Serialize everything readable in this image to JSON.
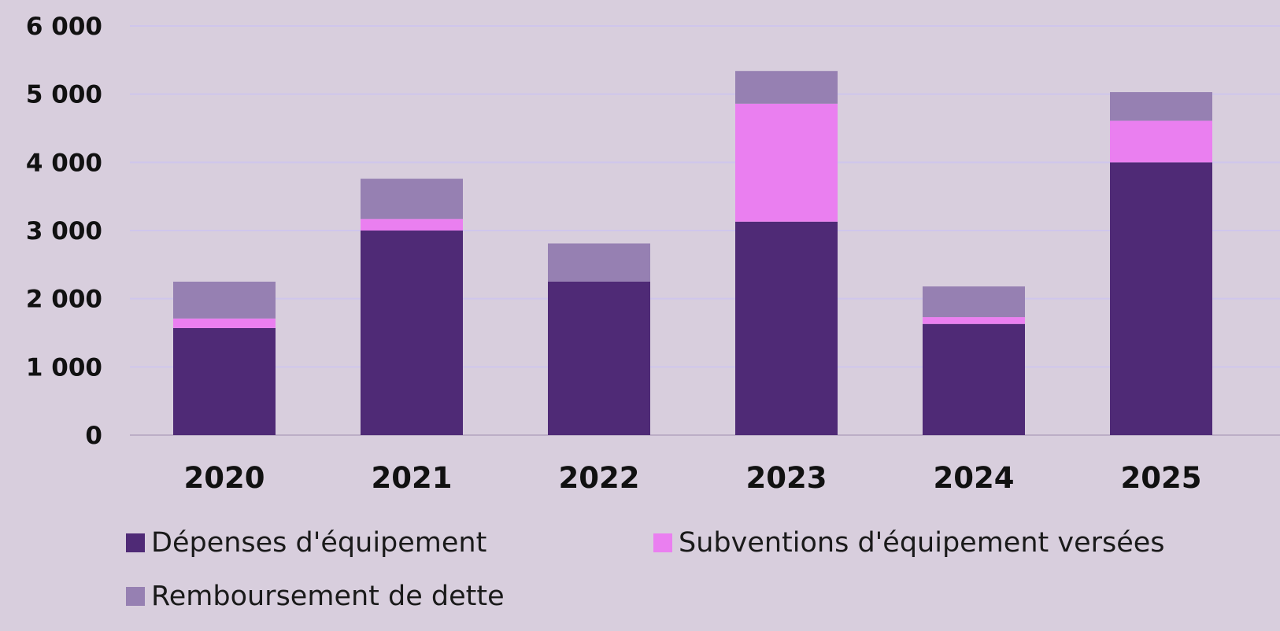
{
  "chart_data": {
    "type": "bar",
    "stacked": true,
    "categories": [
      "2020",
      "2021",
      "2022",
      "2023",
      "2024",
      "2025"
    ],
    "series": [
      {
        "name": "Dépenses d'équipement",
        "color": "#4f2a76",
        "values": [
          1570,
          3000,
          2250,
          3130,
          1630,
          4000
        ]
      },
      {
        "name": "Subventions d'équipement versées",
        "color": "#ea7ff0",
        "values": [
          140,
          170,
          0,
          1730,
          100,
          610
        ]
      },
      {
        "name": "Remboursement de dette",
        "color": "#9680b2",
        "values": [
          540,
          590,
          560,
          480,
          450,
          420
        ]
      }
    ],
    "yticks": [
      "0",
      "1 000",
      "2 000",
      "3 000",
      "4 000",
      "5 000",
      "6 000"
    ],
    "ylim": [
      0,
      6000
    ],
    "grid": true,
    "legend_position": "bottom"
  }
}
